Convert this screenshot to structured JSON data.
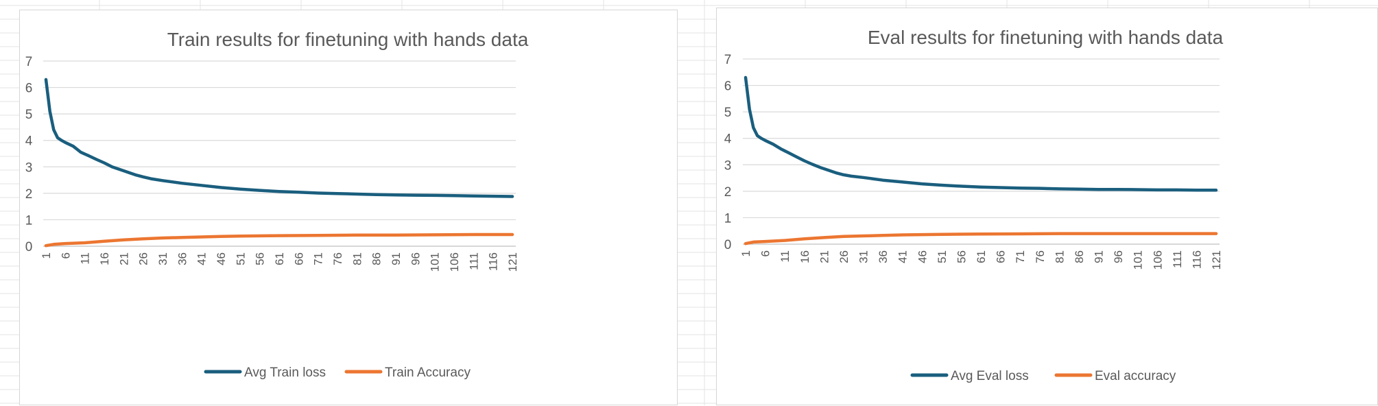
{
  "colors": {
    "loss": "#1a5e7e",
    "accuracy": "#ec7631",
    "gridline": "#d9d9d9",
    "axis_text": "#595959",
    "title_text": "#595959",
    "sheet_grid": "#e3e3e3"
  },
  "chart_data": [
    {
      "type": "line",
      "title": "Train results for finetuning with hands data",
      "xlabel": "",
      "ylabel": "",
      "ylim": [
        0,
        7
      ],
      "yticks": [
        "0",
        "1",
        "2",
        "3",
        "4",
        "5",
        "6",
        "7"
      ],
      "xticks": [
        "1",
        "6",
        "11",
        "16",
        "21",
        "26",
        "31",
        "36",
        "41",
        "46",
        "51",
        "56",
        "61",
        "66",
        "71",
        "76",
        "81",
        "86",
        "91",
        "96",
        "101",
        "106",
        "111",
        "116",
        "121"
      ],
      "x_range": [
        1,
        121
      ],
      "grid": true,
      "legend_position": "bottom",
      "series": [
        {
          "name": "Avg Train loss",
          "color": "#1a5e7e",
          "points": [
            [
              1,
              6.3
            ],
            [
              2,
              5.1
            ],
            [
              3,
              4.4
            ],
            [
              4,
              4.1
            ],
            [
              5,
              4.0
            ],
            [
              6,
              3.92
            ],
            [
              8,
              3.78
            ],
            [
              10,
              3.55
            ],
            [
              12,
              3.42
            ],
            [
              14,
              3.28
            ],
            [
              16,
              3.15
            ],
            [
              18,
              3.0
            ],
            [
              20,
              2.9
            ],
            [
              22,
              2.8
            ],
            [
              24,
              2.7
            ],
            [
              26,
              2.62
            ],
            [
              28,
              2.55
            ],
            [
              31,
              2.48
            ],
            [
              36,
              2.38
            ],
            [
              41,
              2.3
            ],
            [
              46,
              2.22
            ],
            [
              51,
              2.16
            ],
            [
              56,
              2.11
            ],
            [
              61,
              2.07
            ],
            [
              66,
              2.04
            ],
            [
              71,
              2.01
            ],
            [
              76,
              1.99
            ],
            [
              81,
              1.97
            ],
            [
              86,
              1.95
            ],
            [
              91,
              1.94
            ],
            [
              96,
              1.93
            ],
            [
              101,
              1.92
            ],
            [
              106,
              1.91
            ],
            [
              111,
              1.9
            ],
            [
              116,
              1.89
            ],
            [
              121,
              1.88
            ]
          ]
        },
        {
          "name": "Train Accuracy",
          "color": "#ec7631",
          "points": [
            [
              1,
              0.02
            ],
            [
              3,
              0.07
            ],
            [
              6,
              0.1
            ],
            [
              11,
              0.13
            ],
            [
              16,
              0.19
            ],
            [
              21,
              0.24
            ],
            [
              26,
              0.28
            ],
            [
              31,
              0.31
            ],
            [
              36,
              0.33
            ],
            [
              41,
              0.35
            ],
            [
              46,
              0.37
            ],
            [
              51,
              0.38
            ],
            [
              61,
              0.4
            ],
            [
              71,
              0.41
            ],
            [
              81,
              0.42
            ],
            [
              91,
              0.42
            ],
            [
              101,
              0.43
            ],
            [
              111,
              0.44
            ],
            [
              121,
              0.44
            ]
          ]
        }
      ]
    },
    {
      "type": "line",
      "title": "Eval results for finetuning with hands data",
      "xlabel": "",
      "ylabel": "",
      "ylim": [
        0,
        7
      ],
      "yticks": [
        "0",
        "1",
        "2",
        "3",
        "4",
        "5",
        "6",
        "7"
      ],
      "xticks": [
        "1",
        "6",
        "11",
        "16",
        "21",
        "26",
        "31",
        "36",
        "41",
        "46",
        "51",
        "56",
        "61",
        "66",
        "71",
        "76",
        "81",
        "86",
        "91",
        "96",
        "101",
        "106",
        "111",
        "116",
        "121"
      ],
      "x_range": [
        1,
        121
      ],
      "grid": true,
      "legend_position": "bottom",
      "series": [
        {
          "name": "Avg Eval loss",
          "color": "#1a5e7e",
          "points": [
            [
              1,
              6.3
            ],
            [
              2,
              5.1
            ],
            [
              3,
              4.4
            ],
            [
              4,
              4.1
            ],
            [
              5,
              4.0
            ],
            [
              6,
              3.92
            ],
            [
              8,
              3.78
            ],
            [
              10,
              3.6
            ],
            [
              12,
              3.45
            ],
            [
              14,
              3.3
            ],
            [
              16,
              3.15
            ],
            [
              18,
              3.02
            ],
            [
              20,
              2.9
            ],
            [
              22,
              2.8
            ],
            [
              24,
              2.7
            ],
            [
              26,
              2.62
            ],
            [
              28,
              2.57
            ],
            [
              31,
              2.52
            ],
            [
              33,
              2.48
            ],
            [
              36,
              2.42
            ],
            [
              41,
              2.35
            ],
            [
              46,
              2.28
            ],
            [
              51,
              2.23
            ],
            [
              56,
              2.19
            ],
            [
              61,
              2.16
            ],
            [
              66,
              2.14
            ],
            [
              71,
              2.12
            ],
            [
              76,
              2.11
            ],
            [
              81,
              2.09
            ],
            [
              86,
              2.08
            ],
            [
              91,
              2.07
            ],
            [
              96,
              2.07
            ],
            [
              101,
              2.06
            ],
            [
              106,
              2.05
            ],
            [
              111,
              2.05
            ],
            [
              116,
              2.04
            ],
            [
              121,
              2.04
            ]
          ]
        },
        {
          "name": "Eval accuracy",
          "color": "#ec7631",
          "points": [
            [
              1,
              0.02
            ],
            [
              3,
              0.08
            ],
            [
              6,
              0.1
            ],
            [
              11,
              0.14
            ],
            [
              16,
              0.2
            ],
            [
              21,
              0.25
            ],
            [
              26,
              0.29
            ],
            [
              31,
              0.31
            ],
            [
              36,
              0.33
            ],
            [
              41,
              0.35
            ],
            [
              46,
              0.36
            ],
            [
              51,
              0.37
            ],
            [
              61,
              0.38
            ],
            [
              71,
              0.39
            ],
            [
              81,
              0.4
            ],
            [
              91,
              0.4
            ],
            [
              101,
              0.4
            ],
            [
              111,
              0.4
            ],
            [
              121,
              0.4
            ]
          ]
        }
      ]
    }
  ]
}
